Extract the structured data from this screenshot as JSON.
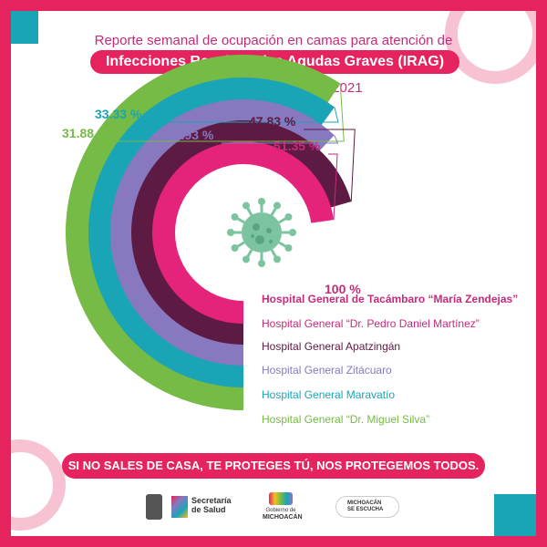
{
  "header": {
    "line1": "Reporte semanal de ocupación en camas para atención de",
    "line2": "Infecciones Respiratorias Agudas Graves (IRAG)",
    "line3": "sábado 13 de marzo de 2021"
  },
  "chart_data": {
    "type": "radial-bar",
    "unit": "%",
    "series": [
      {
        "label": "Hospital General de Tacámbaro “María Zendejas”",
        "value": 100,
        "value_label": "100 %",
        "color": "#ffffff",
        "text_color": "#c72a7a"
      },
      {
        "label": "Hospital General “Dr. Pedro Daniel Martínez”",
        "value": 51.35,
        "value_label": "51.35 %",
        "color": "#e5237a",
        "text_color": "#c72a7a"
      },
      {
        "label": "Hospital General Apatzingán",
        "value": 47.83,
        "value_label": "47.83 %",
        "color": "#5d1a42",
        "text_color": "#5d1a42"
      },
      {
        "label": "Hospital General Zitácuaro",
        "value": 37.93,
        "value_label": "37.93 %",
        "color": "#8878c0",
        "text_color": "#8878c0"
      },
      {
        "label": "Hospital General Maravatío",
        "value": 33.33,
        "value_label": "33.33 %",
        "color": "#1aa5b6",
        "text_color": "#1aa5b6"
      },
      {
        "label": "Hospital General “Dr. Miguel Silva”",
        "value": 31.88,
        "value_label": "31.88 %",
        "color": "#76bb45",
        "text_color": "#76bb45"
      }
    ]
  },
  "slogan": "SI NO SALES DE CASA, TE PROTEGES TÚ, NOS PROTEGEMOS TODOS.",
  "footer": {
    "salud_line1": "Secretaría",
    "salud_line2": "de Salud",
    "gobierno_line1": "Gobierno de",
    "gobierno_line2": "MICHOACÁN",
    "escucha_line1": "MICHOACÁN",
    "escucha_line2": "SE ESCUCHA"
  },
  "colors": {
    "frame": "#e5235e",
    "teal": "#1aa5b6",
    "pink_light": "#f4a6c0",
    "virus": "#7cc4a0"
  }
}
